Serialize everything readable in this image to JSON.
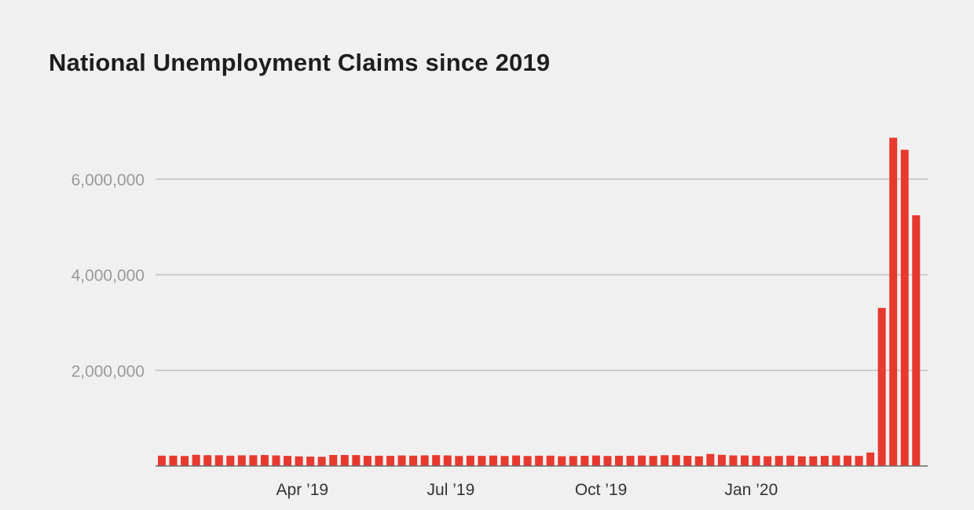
{
  "chart_data": {
    "type": "bar",
    "title": "National Unemployment Claims since 2019",
    "xlabel": "",
    "ylabel": "",
    "ylim": [
      0,
      6000000
    ],
    "yticks": [
      2000000,
      4000000,
      6000000
    ],
    "ytick_labels": [
      "2,000,000",
      "4,000,000",
      "6,000,000"
    ],
    "xtick_labels": [
      "Apr ’19",
      "Jul ’19",
      "Oct ’19",
      "Jan ’20"
    ],
    "grid": true,
    "legend": "none",
    "bar_color": "#e8392e",
    "x_start": "2019-01-05",
    "x_end": "2020-04-11",
    "x": [
      "2019-01-05",
      "2019-01-12",
      "2019-01-19",
      "2019-01-26",
      "2019-02-02",
      "2019-02-09",
      "2019-02-16",
      "2019-02-23",
      "2019-03-02",
      "2019-03-09",
      "2019-03-16",
      "2019-03-23",
      "2019-03-30",
      "2019-04-06",
      "2019-04-13",
      "2019-04-20",
      "2019-04-27",
      "2019-05-04",
      "2019-05-11",
      "2019-05-18",
      "2019-05-25",
      "2019-06-01",
      "2019-06-08",
      "2019-06-15",
      "2019-06-22",
      "2019-06-29",
      "2019-07-06",
      "2019-07-13",
      "2019-07-20",
      "2019-07-27",
      "2019-08-03",
      "2019-08-10",
      "2019-08-17",
      "2019-08-24",
      "2019-08-31",
      "2019-09-07",
      "2019-09-14",
      "2019-09-21",
      "2019-09-28",
      "2019-10-05",
      "2019-10-12",
      "2019-10-19",
      "2019-10-26",
      "2019-11-02",
      "2019-11-09",
      "2019-11-16",
      "2019-11-23",
      "2019-11-30",
      "2019-12-07",
      "2019-12-14",
      "2019-12-21",
      "2019-12-28",
      "2020-01-04",
      "2020-01-11",
      "2020-01-18",
      "2020-01-25",
      "2020-02-01",
      "2020-02-08",
      "2020-02-15",
      "2020-02-22",
      "2020-02-29",
      "2020-03-07",
      "2020-03-14",
      "2020-03-21",
      "2020-03-28",
      "2020-04-04",
      "2020-04-11"
    ],
    "values": [
      216000,
      216000,
      209000,
      234000,
      226000,
      225000,
      216000,
      223000,
      225000,
      229000,
      221000,
      211000,
      202000,
      196000,
      192000,
      230000,
      230000,
      228000,
      212000,
      215000,
      213000,
      220000,
      216000,
      222000,
      227000,
      221000,
      209000,
      216000,
      211000,
      218000,
      209000,
      220000,
      209000,
      215000,
      216000,
      204000,
      208000,
      213000,
      219000,
      210000,
      214000,
      212000,
      218000,
      211000,
      225000,
      227000,
      213000,
      203000,
      252000,
      234000,
      222000,
      220000,
      214000,
      204000,
      211000,
      216000,
      203000,
      204000,
      211000,
      219000,
      217000,
      211000,
      282000,
      3307000,
      6867000,
      6615000,
      5245000
    ]
  }
}
